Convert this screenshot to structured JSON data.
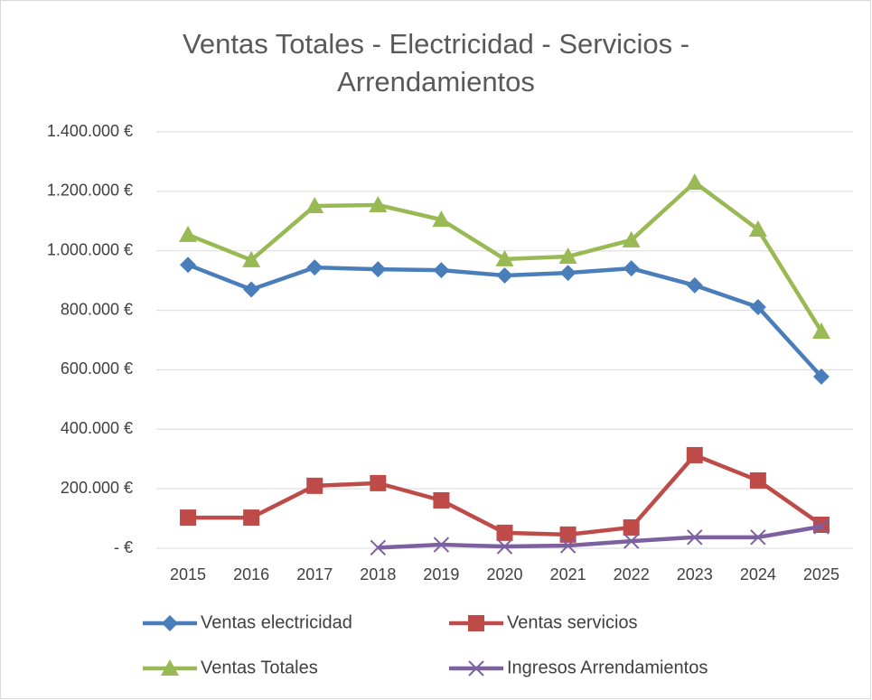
{
  "chart_data": {
    "type": "line",
    "title": "Ventas Totales - Electricidad - Servicios - Arrendamientos",
    "categories": [
      "2015",
      "2016",
      "2017",
      "2018",
      "2019",
      "2020",
      "2021",
      "2022",
      "2023",
      "2024",
      "2025"
    ],
    "series": [
      {
        "name": "Ventas electricidad",
        "color": "#4a7ebb",
        "marker": "diamond",
        "values": [
          953000,
          870000,
          944000,
          938000,
          935000,
          917000,
          926000,
          941000,
          884000,
          811000,
          577000
        ]
      },
      {
        "name": "Ventas servicios",
        "color": "#be4b48",
        "marker": "square",
        "values": [
          103000,
          103000,
          210000,
          219000,
          161000,
          52000,
          46000,
          70000,
          313000,
          228000,
          79000
        ]
      },
      {
        "name": "Ventas Totales",
        "color": "#98b954",
        "marker": "triangle",
        "values": [
          1054000,
          969000,
          1151000,
          1154000,
          1105000,
          972000,
          981000,
          1036000,
          1230000,
          1072000,
          729000
        ]
      },
      {
        "name": "Ingresos Arrendamientos",
        "color": "#7d60a0",
        "marker": "x",
        "values": [
          null,
          null,
          null,
          2000,
          12000,
          6000,
          9000,
          24000,
          37000,
          37000,
          73000
        ]
      }
    ],
    "ylim": [
      0,
      1400000
    ],
    "yticks": [
      {
        "value": 0,
        "label": "-  €"
      },
      {
        "value": 200000,
        "label": "200.000 €"
      },
      {
        "value": 400000,
        "label": "400.000 €"
      },
      {
        "value": 600000,
        "label": "600.000 €"
      },
      {
        "value": 800000,
        "label": "800.000 €"
      },
      {
        "value": 1000000,
        "label": "1.000.000 €"
      },
      {
        "value": 1200000,
        "label": "1.200.000 €"
      },
      {
        "value": 1400000,
        "label": "1.400.000 €"
      }
    ],
    "grid": true,
    "legend": "bottom"
  }
}
